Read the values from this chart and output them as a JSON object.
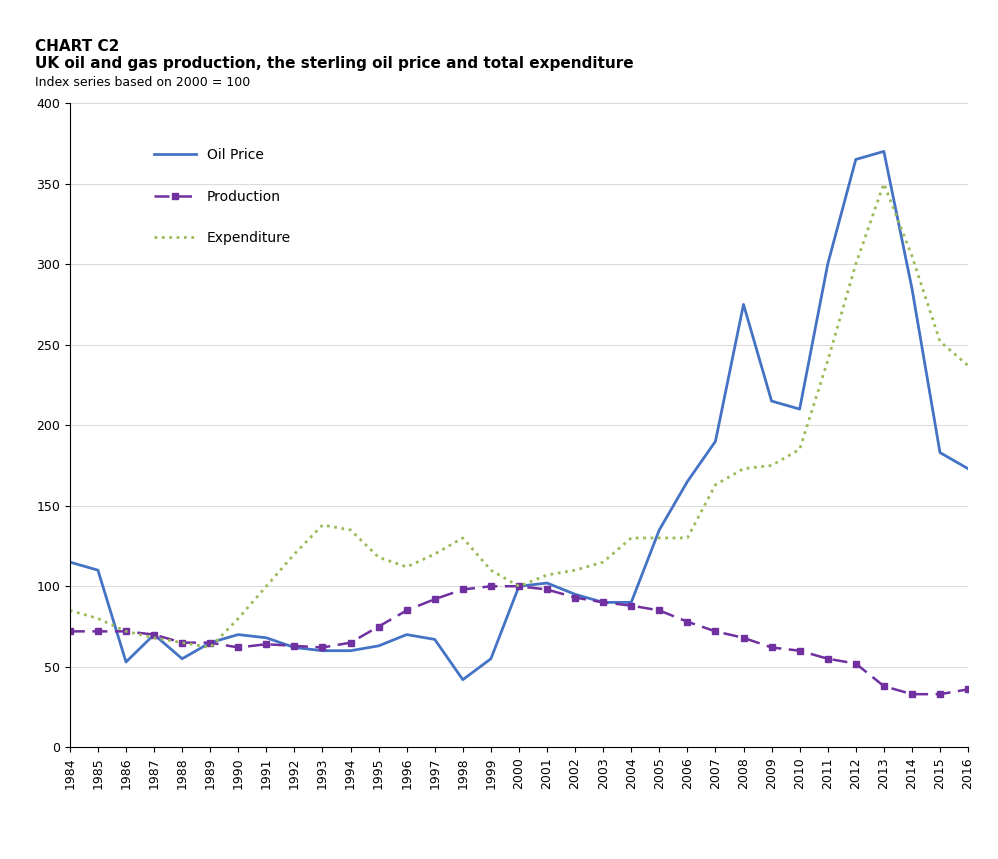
{
  "title_line1": "CHART C2",
  "title_line2": "UK oil and gas production, the sterling oil price and total expenditure",
  "subtitle": "Index series based on 2000 = 100",
  "years": [
    1984,
    1985,
    1986,
    1987,
    1988,
    1989,
    1990,
    1991,
    1992,
    1993,
    1994,
    1995,
    1996,
    1997,
    1998,
    1999,
    2000,
    2001,
    2002,
    2003,
    2004,
    2005,
    2006,
    2007,
    2008,
    2009,
    2010,
    2011,
    2012,
    2013,
    2014,
    2015,
    2016
  ],
  "oil_price": [
    115,
    110,
    53,
    70,
    55,
    65,
    70,
    68,
    62,
    60,
    60,
    63,
    70,
    67,
    42,
    55,
    100,
    102,
    95,
    90,
    90,
    135,
    165,
    190,
    275,
    215,
    210,
    300,
    365,
    370,
    285,
    183,
    173
  ],
  "production": [
    72,
    72,
    72,
    70,
    65,
    65,
    62,
    64,
    63,
    62,
    65,
    75,
    85,
    92,
    98,
    100,
    100,
    98,
    93,
    90,
    88,
    85,
    78,
    72,
    68,
    62,
    60,
    55,
    52,
    38,
    33,
    33,
    36
  ],
  "expenditure": [
    85,
    80,
    72,
    68,
    65,
    62,
    80,
    100,
    120,
    138,
    135,
    118,
    112,
    120,
    130,
    110,
    100,
    107,
    110,
    115,
    130,
    130,
    130,
    163,
    173,
    175,
    185,
    240,
    300,
    350,
    305,
    252,
    237
  ],
  "oil_price_color": "#4472C4",
  "production_color": "#7030A0",
  "expenditure_color": "#9BBB59",
  "ylim": [
    0,
    400
  ],
  "yticks": [
    0,
    50,
    100,
    150,
    200,
    250,
    300,
    350,
    400
  ],
  "legend_labels": [
    "Oil Price",
    "Production",
    "Expenditure"
  ],
  "bg_color": "#FFFFFF"
}
